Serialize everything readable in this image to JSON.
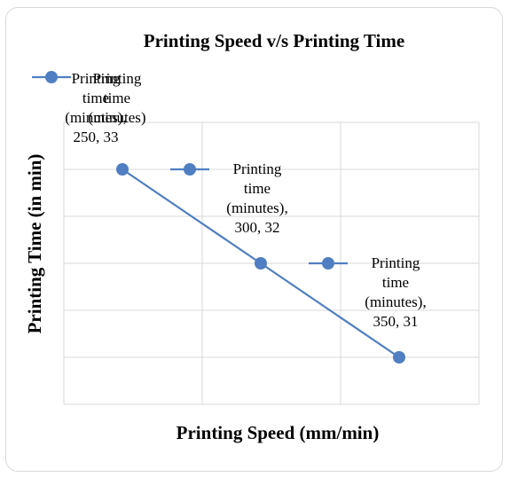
{
  "chart_data": {
    "type": "line",
    "title": "Printing Speed v/s Printing Time",
    "xlabel": "Printing Speed (mm/min)",
    "ylabel": "Printing Time (in min)",
    "legend_placement": "top-left",
    "grid": true,
    "colors": {
      "series": "#4f7ec2",
      "grid": "#d9d9d9",
      "frame": "#d9d9d9"
    },
    "series": [
      {
        "name": "Printing time (minutes)",
        "x": [
          250,
          300,
          350
        ],
        "y": [
          33,
          32,
          31
        ]
      }
    ],
    "data_labels": [
      {
        "lines": [
          "Printing",
          "time",
          "(minutes),",
          "250, 33"
        ]
      },
      {
        "lines": [
          "Printing",
          "time",
          "(minutes),",
          "300, 32"
        ]
      },
      {
        "lines": [
          "Printing",
          "time",
          "(minutes),",
          "350, 31"
        ]
      }
    ]
  }
}
